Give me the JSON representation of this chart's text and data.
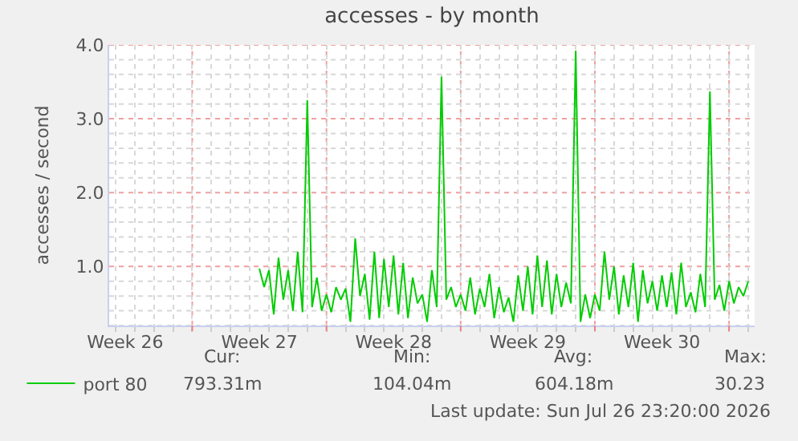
{
  "chart_data": {
    "type": "line",
    "title": "accesses - by month",
    "ylabel": "accesses / second",
    "x": [
      "2026-07-02T12:00",
      "2026-07-02T18:00",
      "2026-07-03T00:00",
      "2026-07-03T06:00",
      "2026-07-03T12:00",
      "2026-07-03T18:00",
      "2026-07-04T00:00",
      "2026-07-04T06:00",
      "2026-07-04T12:00",
      "2026-07-04T18:00",
      "2026-07-05T00:00",
      "2026-07-05T06:00",
      "2026-07-05T12:00",
      "2026-07-05T18:00",
      "2026-07-06T00:00",
      "2026-07-06T06:00",
      "2026-07-06T12:00",
      "2026-07-06T18:00",
      "2026-07-07T00:00",
      "2026-07-07T06:00",
      "2026-07-07T12:00",
      "2026-07-07T18:00",
      "2026-07-08T00:00",
      "2026-07-08T06:00",
      "2026-07-08T12:00",
      "2026-07-08T18:00",
      "2026-07-09T00:00",
      "2026-07-09T06:00",
      "2026-07-09T12:00",
      "2026-07-09T18:00",
      "2026-07-10T00:00",
      "2026-07-10T06:00",
      "2026-07-10T12:00",
      "2026-07-10T18:00",
      "2026-07-11T00:00",
      "2026-07-11T06:00",
      "2026-07-11T12:00",
      "2026-07-11T18:00",
      "2026-07-12T00:00",
      "2026-07-12T06:00",
      "2026-07-12T12:00",
      "2026-07-12T18:00",
      "2026-07-13T00:00",
      "2026-07-13T06:00",
      "2026-07-13T12:00",
      "2026-07-13T18:00",
      "2026-07-14T00:00",
      "2026-07-14T06:00",
      "2026-07-14T12:00",
      "2026-07-14T18:00",
      "2026-07-15T00:00",
      "2026-07-15T06:00",
      "2026-07-15T12:00",
      "2026-07-15T18:00",
      "2026-07-16T00:00",
      "2026-07-16T06:00",
      "2026-07-16T12:00",
      "2026-07-16T18:00",
      "2026-07-17T00:00",
      "2026-07-17T06:00",
      "2026-07-17T12:00",
      "2026-07-17T18:00",
      "2026-07-18T00:00",
      "2026-07-18T06:00",
      "2026-07-18T12:00",
      "2026-07-18T18:00",
      "2026-07-19T00:00",
      "2026-07-19T06:00",
      "2026-07-19T12:00",
      "2026-07-19T18:00",
      "2026-07-20T00:00",
      "2026-07-20T06:00",
      "2026-07-20T12:00",
      "2026-07-20T18:00",
      "2026-07-21T00:00",
      "2026-07-21T06:00",
      "2026-07-21T12:00",
      "2026-07-21T18:00",
      "2026-07-22T00:00",
      "2026-07-22T06:00",
      "2026-07-22T12:00",
      "2026-07-22T18:00",
      "2026-07-23T00:00",
      "2026-07-23T06:00",
      "2026-07-23T12:00",
      "2026-07-23T18:00",
      "2026-07-24T00:00",
      "2026-07-24T06:00",
      "2026-07-24T12:00",
      "2026-07-24T18:00",
      "2026-07-25T00:00",
      "2026-07-25T06:00",
      "2026-07-25T12:00",
      "2026-07-25T18:00",
      "2026-07-26T00:00",
      "2026-07-26T06:00",
      "2026-07-26T12:00",
      "2026-07-26T18:00",
      "2026-07-27T00:00",
      "2026-07-27T06:00",
      "2026-07-27T12:00",
      "2026-07-27T18:00",
      "2026-07-28T00:00"
    ],
    "series": [
      {
        "name": "port 80",
        "color": "#00cc00",
        "values": [
          0.97,
          0.72,
          0.95,
          0.35,
          1.12,
          0.55,
          0.95,
          0.4,
          1.2,
          0.38,
          3.25,
          0.45,
          0.85,
          0.4,
          0.62,
          0.38,
          0.72,
          0.55,
          0.7,
          0.25,
          1.38,
          0.6,
          0.9,
          0.28,
          1.2,
          0.3,
          1.1,
          0.45,
          1.15,
          0.35,
          1.05,
          0.3,
          0.85,
          0.5,
          0.62,
          0.25,
          0.95,
          0.45,
          3.57,
          0.55,
          0.72,
          0.45,
          0.62,
          0.4,
          0.85,
          0.35,
          0.7,
          0.45,
          0.9,
          0.3,
          0.72,
          0.38,
          0.58,
          0.25,
          0.88,
          0.4,
          1.0,
          0.35,
          1.15,
          0.45,
          1.08,
          0.35,
          0.9,
          0.45,
          0.78,
          0.5,
          3.92,
          0.25,
          0.62,
          0.3,
          0.62,
          0.4,
          1.2,
          0.55,
          1.0,
          0.35,
          0.88,
          0.45,
          1.05,
          0.25,
          0.95,
          0.5,
          0.8,
          0.4,
          0.88,
          0.45,
          0.92,
          0.35,
          1.05,
          0.45,
          0.65,
          0.38,
          0.9,
          0.45,
          3.37,
          0.55,
          0.75,
          0.4,
          0.8,
          0.5,
          0.72,
          0.6,
          0.8
        ]
      }
    ],
    "xlim": [
      "2026-06-24T16:00",
      "2026-07-28T08:00"
    ],
    "xticks": [
      {
        "value": "2026-06-25T12:00",
        "label": "Week 26"
      },
      {
        "value": "2026-07-02T12:00",
        "label": "Week 27"
      },
      {
        "value": "2026-07-09T12:00",
        "label": "Week 28"
      },
      {
        "value": "2026-07-16T12:00",
        "label": "Week 29"
      },
      {
        "value": "2026-07-23T12:00",
        "label": "Week 30"
      },
      {
        "value": "2026-06-29",
        "label": null
      },
      {
        "value": "2026-07-06",
        "label": null
      },
      {
        "value": "2026-07-13",
        "label": null
      },
      {
        "value": "2026-07-20",
        "label": null
      },
      {
        "value": "2026-07-27",
        "label": null
      }
    ],
    "ylim": [
      0.2,
      4.0
    ],
    "yticks": [
      {
        "value": 0.2,
        "label": null
      },
      {
        "value": 0.4,
        "label": null
      },
      {
        "value": 0.6,
        "label": null
      },
      {
        "value": 0.8,
        "label": null
      },
      {
        "value": 1,
        "label": "1.0"
      },
      {
        "value": 1.2,
        "label": null
      },
      {
        "value": 1.4,
        "label": null
      },
      {
        "value": 1.6,
        "label": null
      },
      {
        "value": 1.8,
        "label": null
      },
      {
        "value": 2,
        "label": "2.0"
      },
      {
        "value": 2.2,
        "label": null
      },
      {
        "value": 2.4,
        "label": null
      },
      {
        "value": 2.6,
        "label": null
      },
      {
        "value": 2.8,
        "label": null
      },
      {
        "value": 3,
        "label": "3.0"
      },
      {
        "value": 3.2,
        "label": null
      },
      {
        "value": 3.4,
        "label": null
      },
      {
        "value": 3.6,
        "label": null
      },
      {
        "value": 3.8,
        "label": null
      },
      {
        "value": 4,
        "label": "4.0"
      }
    ],
    "grid": true,
    "legend": "bottom left",
    "marker": "none",
    "line_style": "solid",
    "annotations": [
      "Cur:",
      "793.31m",
      "Min:",
      "104.04m",
      "Avg:",
      "604.18m",
      "Max:",
      "30.23",
      "Last update: Sun Jul 26 23:20:00 2026"
    ]
  }
}
